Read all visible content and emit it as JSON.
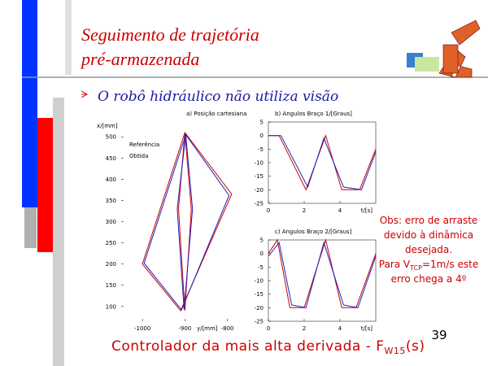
{
  "title": [
    "Seguimento de trajetória",
    "pré-armazenada"
  ],
  "bullet": "O robô hidráulico não utiliza visão",
  "plots": [
    {
      "title": "a) Posição cartesiana",
      "ylabel": "x/[mm]",
      "xlabel": "y/[mm]",
      "xlim": [
        -1050,
        -780
      ],
      "ylim": [
        65,
        535
      ],
      "xticks": [
        -1000,
        -900,
        -800
      ],
      "yticks": [
        100,
        150,
        200,
        250,
        300,
        350,
        400,
        450,
        500
      ],
      "series": [
        {
          "name": "Referência",
          "color": "#cc0000",
          "x": [
            -900,
            -1000,
            -910,
            -790,
            -900,
            -915,
            -900,
            -885,
            -900
          ],
          "y": [
            510,
            200,
            90,
            365,
            510,
            330,
            90,
            330,
            510
          ]
        },
        {
          "name": "Obtida",
          "color": "#2020c0",
          "x": [
            -898,
            -996,
            -908,
            -796,
            -898,
            -918,
            -902,
            -882,
            -898
          ],
          "y": [
            505,
            202,
            92,
            362,
            505,
            330,
            93,
            330,
            505
          ]
        }
      ]
    },
    {
      "title": "b) Angulos Braço 1/[Graus]",
      "xlabel": "t/[s]",
      "xlim": [
        0,
        6
      ],
      "ylim": [
        -25,
        5
      ],
      "xticks": [
        0,
        2,
        4
      ],
      "yticks": [
        5,
        0,
        -5,
        -10,
        -15,
        -20,
        -25
      ],
      "series": [
        {
          "color": "#cc0000",
          "x": [
            0,
            0.6,
            2.1,
            3.2,
            4.1,
            5.1,
            6
          ],
          "y": [
            0,
            0,
            -20,
            0,
            -20,
            -20,
            -5
          ]
        },
        {
          "color": "#2020c0",
          "x": [
            0,
            0.7,
            2.2,
            3.1,
            4.2,
            5.2,
            6
          ],
          "y": [
            0,
            0,
            -19,
            -1,
            -19,
            -20,
            -6
          ]
        }
      ]
    },
    {
      "title": "c) Angulos Braço 2/[Graus]",
      "xlabel": "t/[s]",
      "xlim": [
        0,
        6
      ],
      "ylim": [
        -25,
        5
      ],
      "xticks": [
        0,
        2,
        4
      ],
      "yticks": [
        5,
        0,
        -5,
        -10,
        -15,
        -20,
        -25
      ],
      "series": [
        {
          "color": "#cc0000",
          "x": [
            0,
            0.5,
            1.2,
            2.0,
            3.2,
            4.1,
            4.9,
            6
          ],
          "y": [
            0,
            5,
            -20,
            -20,
            5,
            -20,
            -20,
            0
          ]
        },
        {
          "color": "#2020c0",
          "x": [
            0,
            0.6,
            1.3,
            2.1,
            3.1,
            4.2,
            5.0,
            6
          ],
          "y": [
            -1,
            4,
            -19,
            -20,
            4,
            -19,
            -20,
            -1
          ]
        }
      ]
    }
  ],
  "note": {
    "lines": [
      "Obs: erro de arraste",
      "devido à dinâmica",
      "desejada."
    ],
    "speed_prefix": "Para V",
    "speed_sub": "TCP",
    "speed_suffix": "=1m/s este",
    "last": "erro chega a 4º"
  },
  "footer": {
    "text": "Controlador da mais alta derivada - F",
    "sub": "W15",
    "suffix": "(s)"
  },
  "page_number": "39"
}
